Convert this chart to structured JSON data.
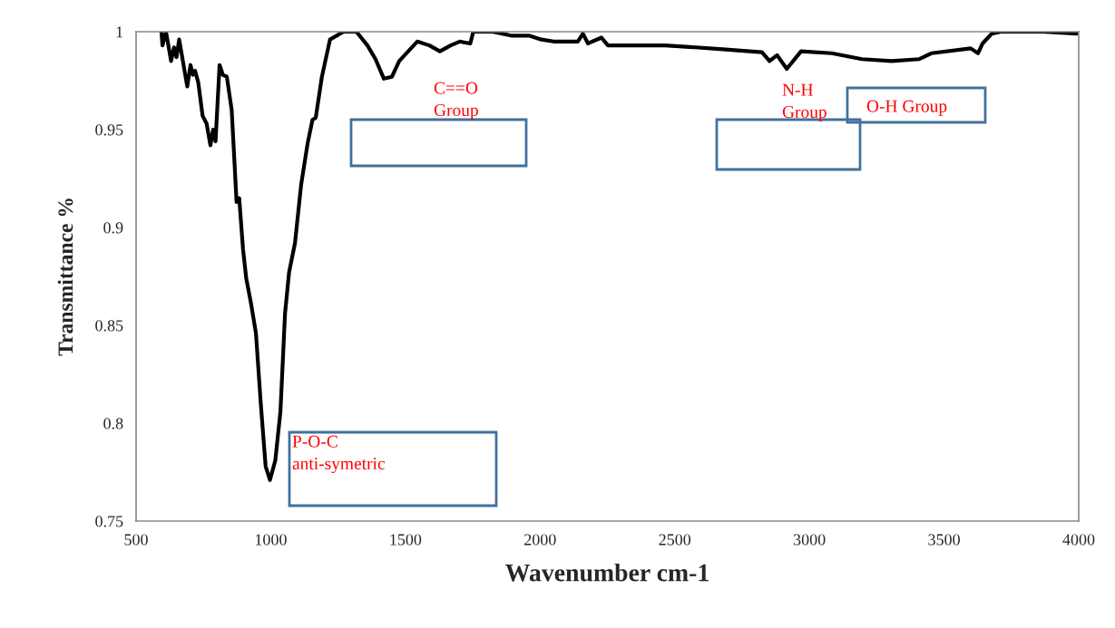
{
  "chart_data": {
    "type": "line",
    "xlabel": "Wavenumber cm-1",
    "ylabel": "Transmittance %",
    "xlim": [
      500,
      4000
    ],
    "xticks": [
      500,
      1000,
      1500,
      2000,
      2500,
      3000,
      3500,
      4000
    ],
    "ylim": [
      0.75,
      1
    ],
    "yticks": [
      0.75,
      0.8,
      0.85,
      0.9,
      0.95,
      1
    ],
    "grid": false,
    "legend": false,
    "marker": "none",
    "line_style": "solid",
    "series": [
      {
        "color": "#000000",
        "x": [
          594,
          598,
          611,
          630,
          641,
          650,
          660,
          690,
          702,
          711,
          719,
          731,
          747,
          762,
          776,
          786,
          795,
          810,
          822,
          837,
          855,
          867,
          873,
          883,
          897,
          909,
          927,
          945,
          963,
          981,
          997,
          1017,
          1036,
          1053,
          1068,
          1090,
          1113,
          1137,
          1155,
          1167,
          1190,
          1220,
          1270,
          1318,
          1359,
          1389,
          1420,
          1450,
          1477,
          1544,
          1589,
          1628,
          1668,
          1702,
          1741,
          1752,
          1824,
          1892,
          1959,
          2005,
          2050,
          2140,
          2159,
          2178,
          2228,
          2252,
          2353,
          2464,
          2577,
          2678,
          2824,
          2852,
          2880,
          2916,
          2969,
          3083,
          3195,
          3306,
          3408,
          3453,
          3599,
          3626,
          3643,
          3677,
          3711,
          3868,
          3993
        ],
        "values": [
          1.0,
          0.993,
          1.0,
          0.985,
          0.992,
          0.987,
          0.996,
          0.972,
          0.983,
          0.978,
          0.98,
          0.974,
          0.957,
          0.953,
          0.942,
          0.95,
          0.944,
          0.983,
          0.978,
          0.977,
          0.96,
          0.929,
          0.913,
          0.915,
          0.889,
          0.874,
          0.861,
          0.846,
          0.81,
          0.778,
          0.771,
          0.781,
          0.806,
          0.856,
          0.877,
          0.892,
          0.922,
          0.943,
          0.955,
          0.956,
          0.977,
          0.996,
          1.0,
          1.0,
          0.993,
          0.986,
          0.976,
          0.977,
          0.985,
          0.995,
          0.993,
          0.99,
          0.993,
          0.995,
          0.994,
          1.0,
          1.0,
          0.998,
          0.998,
          0.996,
          0.995,
          0.995,
          0.999,
          0.994,
          0.997,
          0.993,
          0.993,
          0.993,
          0.992,
          0.991,
          0.9895,
          0.985,
          0.988,
          0.981,
          0.99,
          0.989,
          0.986,
          0.985,
          0.986,
          0.989,
          0.9915,
          0.989,
          0.994,
          0.999,
          1.0,
          1.0,
          0.999
        ]
      }
    ],
    "annotations": [
      "P-O-C\nanti-symetric",
      "C==O\nGroup",
      "N-H\nGroup",
      "O-H Group"
    ]
  }
}
